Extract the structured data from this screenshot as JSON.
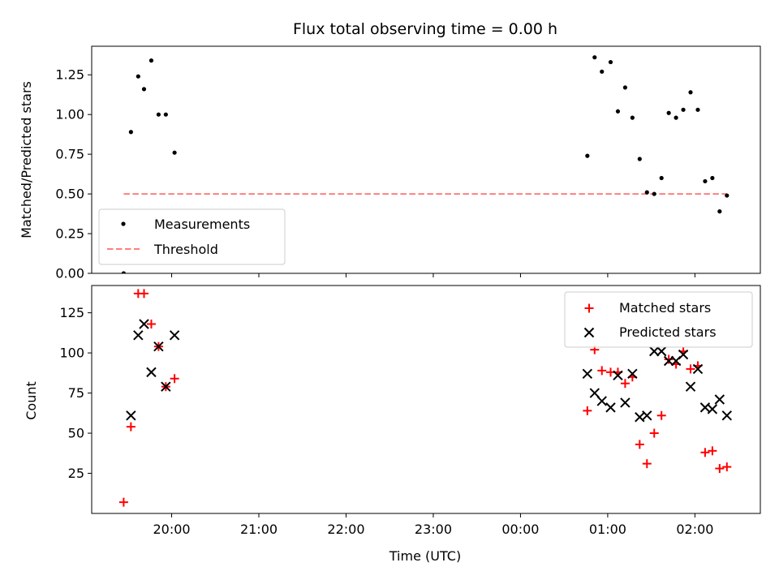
{
  "chart_data": [
    {
      "type": "scatter",
      "title": "Flux total observing time = 0.00 h",
      "xlabel": "",
      "ylabel": "Matched/Predicted stars",
      "ylim": [
        0,
        1.43
      ],
      "yticks": [
        "0.00",
        "0.25",
        "0.50",
        "0.75",
        "1.00",
        "1.25"
      ],
      "x_tick_labels_shown": false,
      "legend": {
        "placement": "lower-left",
        "entries": [
          "Measurements",
          "Threshold"
        ]
      },
      "series": [
        {
          "name": "Measurements",
          "marker": "dot",
          "color": "#000000",
          "points": [
            [
              "19:27",
              0.0
            ],
            [
              "19:32",
              0.89
            ],
            [
              "19:37",
              1.24
            ],
            [
              "19:41",
              1.16
            ],
            [
              "19:46",
              1.34
            ],
            [
              "19:51",
              1.0
            ],
            [
              "19:56",
              1.0
            ],
            [
              "20:02",
              0.76
            ],
            [
              "00:46",
              0.74
            ],
            [
              "00:51",
              1.36
            ],
            [
              "00:56",
              1.27
            ],
            [
              "01:02",
              1.33
            ],
            [
              "01:07",
              1.02
            ],
            [
              "01:12",
              1.17
            ],
            [
              "01:17",
              0.98
            ],
            [
              "01:22",
              0.72
            ],
            [
              "01:27",
              0.51
            ],
            [
              "01:32",
              0.5
            ],
            [
              "01:37",
              0.6
            ],
            [
              "01:42",
              1.01
            ],
            [
              "01:47",
              0.98
            ],
            [
              "01:52",
              1.03
            ],
            [
              "01:57",
              1.14
            ],
            [
              "02:02",
              1.03
            ],
            [
              "02:07",
              0.58
            ],
            [
              "02:12",
              0.6
            ],
            [
              "02:17",
              0.39
            ],
            [
              "02:22",
              0.49
            ]
          ]
        },
        {
          "name": "Threshold",
          "style": "dashed-line",
          "color": "#ff7f7f",
          "x_range": [
            "19:27",
            "02:22"
          ],
          "y": 0.5
        }
      ]
    },
    {
      "type": "scatter",
      "title": "",
      "xlabel": "Time (UTC)",
      "ylabel": "Count",
      "ylim": [
        0,
        142
      ],
      "xlim": [
        "19:05",
        "02:45"
      ],
      "xticks": [
        "20:00",
        "21:00",
        "22:00",
        "23:00",
        "00:00",
        "01:00",
        "02:00"
      ],
      "yticks": [
        "25",
        "50",
        "75",
        "100",
        "125"
      ],
      "legend": {
        "placement": "top-right",
        "entries": [
          "Matched stars",
          "Predicted stars"
        ]
      },
      "series": [
        {
          "name": "Matched stars",
          "marker": "plus",
          "color": "#ff0000",
          "points": [
            [
              "19:27",
              7
            ],
            [
              "19:32",
              54
            ],
            [
              "19:37",
              137
            ],
            [
              "19:41",
              137
            ],
            [
              "19:46",
              118
            ],
            [
              "19:51",
              104
            ],
            [
              "19:56",
              79
            ],
            [
              "20:02",
              84
            ],
            [
              "00:46",
              64
            ],
            [
              "00:51",
              102
            ],
            [
              "00:56",
              89
            ],
            [
              "01:02",
              88
            ],
            [
              "01:07",
              88
            ],
            [
              "01:12",
              81
            ],
            [
              "01:17",
              85
            ],
            [
              "01:22",
              43
            ],
            [
              "01:27",
              31
            ],
            [
              "01:32",
              50
            ],
            [
              "01:37",
              61
            ],
            [
              "01:42",
              96
            ],
            [
              "01:47",
              93
            ],
            [
              "01:52",
              101
            ],
            [
              "01:57",
              90
            ],
            [
              "02:02",
              92
            ],
            [
              "02:07",
              38
            ],
            [
              "02:12",
              39
            ],
            [
              "02:17",
              28
            ],
            [
              "02:22",
              29
            ]
          ]
        },
        {
          "name": "Predicted stars",
          "marker": "x",
          "color": "#000000",
          "points": [
            [
              "19:32",
              61
            ],
            [
              "19:37",
              111
            ],
            [
              "19:41",
              118
            ],
            [
              "19:46",
              88
            ],
            [
              "19:51",
              104
            ],
            [
              "19:56",
              79
            ],
            [
              "20:02",
              111
            ],
            [
              "00:46",
              87
            ],
            [
              "00:51",
              75
            ],
            [
              "00:56",
              70
            ],
            [
              "01:02",
              66
            ],
            [
              "01:07",
              86
            ],
            [
              "01:12",
              69
            ],
            [
              "01:17",
              87
            ],
            [
              "01:22",
              60
            ],
            [
              "01:27",
              61
            ],
            [
              "01:32",
              101
            ],
            [
              "01:37",
              101
            ],
            [
              "01:42",
              95
            ],
            [
              "01:47",
              95
            ],
            [
              "01:52",
              99
            ],
            [
              "01:57",
              79
            ],
            [
              "02:02",
              90
            ],
            [
              "02:07",
              66
            ],
            [
              "02:12",
              65
            ],
            [
              "02:17",
              71
            ],
            [
              "02:22",
              61
            ]
          ]
        }
      ]
    }
  ]
}
